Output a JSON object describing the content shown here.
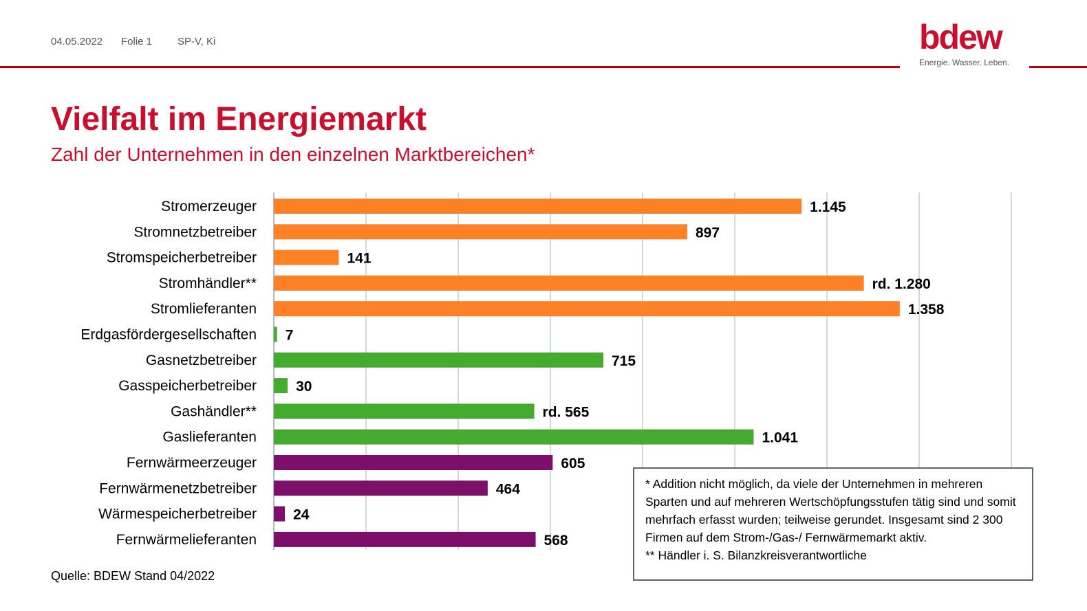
{
  "header": {
    "date": "04.05.2022",
    "slide": "Folie 1",
    "author": "SP-V, Ki"
  },
  "logo": {
    "wordmark": "bdew",
    "tagline": "Energie. Wasser. Leben."
  },
  "title": "Vielfalt im Energiemarkt",
  "subtitle": "Zahl der Unternehmen in den einzelnen Marktbereichen*",
  "source": "Quelle: BDEW Stand 04/2022",
  "footnote": {
    "line1": "* Addition nicht möglich, da viele der Unternehmen in mehreren Sparten und auf mehreren Wertschöpfungsstufen tätig sind und somit mehrfach erfasst wurden; teilweise gerundet. Insgesamt sind 2 300 Firmen auf dem Strom-/Gas-/ Fernwärmemarkt aktiv.",
    "line2": "** Händler i. S. Bilanzkreisverantwortliche"
  },
  "colors": {
    "brand_red": "#c8102e",
    "strom": "#ff8125",
    "gas": "#45ab2e",
    "waerme": "#7b0f6a",
    "grid": "#c4cbd6"
  },
  "chart_data": {
    "type": "bar",
    "orientation": "horizontal",
    "xlim": [
      0,
      1600
    ],
    "grid": true,
    "categories": [
      "Stromerzeuger",
      "Stromnetzbetreiber",
      "Stromspeicherbetreiber",
      "Stromhändler**",
      "Stromlieferanten",
      "Erdgasfördergesellschaften",
      "Gasnetzbetreiber",
      "Gasspeicherbetreiber",
      "Gashändler**",
      "Gaslieferanten",
      "Fernwärmeerzeuger",
      "Fernwärmenetzbetreiber",
      "Wärmespeicherbetreiber",
      "Fernwärmelieferanten"
    ],
    "values": [
      1145,
      897,
      141,
      1280,
      1358,
      7,
      715,
      30,
      565,
      1041,
      605,
      464,
      24,
      568
    ],
    "value_labels": [
      "1.145",
      "897",
      "141",
      "rd. 1.280",
      "1.358",
      "7",
      "715",
      "30",
      "rd. 565",
      "1.041",
      "605",
      "464",
      "24",
      "568"
    ],
    "groups": [
      "strom",
      "strom",
      "strom",
      "strom",
      "strom",
      "gas",
      "gas",
      "gas",
      "gas",
      "gas",
      "waerme",
      "waerme",
      "waerme",
      "waerme"
    ]
  }
}
